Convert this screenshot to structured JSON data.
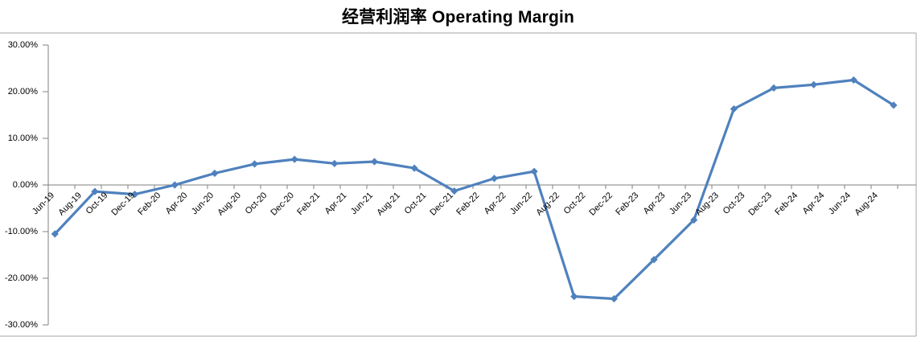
{
  "title": "经营利润率 Operating Margin",
  "colors": {
    "line": "#4F81BD",
    "axis": "#808080",
    "plot_border": "#A6A6A6",
    "text": "#000000",
    "background": "#FFFFFF"
  },
  "chart_data": {
    "type": "line",
    "title": "经营利润率 Operating Margin",
    "legend": "none",
    "gridlines": "none",
    "marker_shape": "diamond",
    "y_axis": {
      "min": -30,
      "max": 30,
      "step": 10,
      "format": "percent, two decimals",
      "tick_labels": [
        "30.00%",
        "20.00%",
        "10.00%",
        "0.00%",
        "-10.00%",
        "-20.00%",
        "-30.00%"
      ]
    },
    "x_axis": {
      "type": "date",
      "label_interval": "2 months",
      "tick_labels": [
        "Jun-19",
        "Aug-19",
        "Oct-19",
        "Dec-19",
        "Feb-20",
        "Apr-20",
        "Jun-20",
        "Aug-20",
        "Oct-20",
        "Dec-20",
        "Feb-21",
        "Apr-21",
        "Jun-21",
        "Aug-21",
        "Oct-21",
        "Dec-21",
        "Feb-22",
        "Apr-22",
        "Jun-22",
        "Aug-22",
        "Oct-22",
        "Dec-22",
        "Feb-23",
        "Apr-23",
        "Jun-23",
        "Aug-23",
        "Oct-23",
        "Dec-23",
        "Feb-24",
        "Apr-24",
        "Jun-24",
        "Aug-24"
      ]
    },
    "series": [
      {
        "name": "经营利润率 Operating Margin",
        "color": "#4F81BD",
        "interval": "quarterly",
        "points": [
          {
            "period": "Jun-19",
            "value": -10.5
          },
          {
            "period": "Sep-19",
            "value": -1.4
          },
          {
            "period": "Dec-19",
            "value": -2.0
          },
          {
            "period": "Mar-20",
            "value": 0.0
          },
          {
            "period": "Jun-20",
            "value": 2.5
          },
          {
            "period": "Sep-20",
            "value": 4.5
          },
          {
            "period": "Dec-20",
            "value": 5.5
          },
          {
            "period": "Mar-21",
            "value": 4.6
          },
          {
            "period": "Jun-21",
            "value": 5.0
          },
          {
            "period": "Sep-21",
            "value": 3.6
          },
          {
            "period": "Dec-21",
            "value": -1.3
          },
          {
            "period": "Mar-22",
            "value": 1.4
          },
          {
            "period": "Jun-22",
            "value": 2.9
          },
          {
            "period": "Sep-22",
            "value": -23.9
          },
          {
            "period": "Dec-22",
            "value": -24.4
          },
          {
            "period": "Mar-23",
            "value": -16.0
          },
          {
            "period": "Jun-23",
            "value": -7.5
          },
          {
            "period": "Sep-23",
            "value": 16.3
          },
          {
            "period": "Dec-23",
            "value": 20.8
          },
          {
            "period": "Mar-24",
            "value": 21.5
          },
          {
            "period": "Jun-24",
            "value": 22.5
          },
          {
            "period": "Sep-24",
            "value": 17.1
          }
        ]
      }
    ]
  }
}
